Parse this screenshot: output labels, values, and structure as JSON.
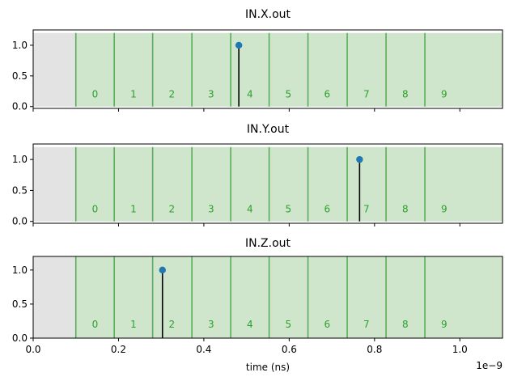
{
  "chart_data": [
    {
      "type": "scatter",
      "title": "IN.X.out",
      "xlim": [
        0,
        1.1e-09
      ],
      "ylim": [
        -0.03,
        1.25
      ],
      "yticks": [
        {
          "v": 0.0,
          "label": "0.0"
        },
        {
          "v": 0.5,
          "label": "0.5"
        },
        {
          "v": 1.0,
          "label": "1.0"
        }
      ],
      "points": [
        {
          "x": 4.82e-10,
          "y": 1.0
        }
      ],
      "show_xticklabels": false
    },
    {
      "type": "scatter",
      "title": "IN.Y.out",
      "xlim": [
        0,
        1.1e-09
      ],
      "ylim": [
        -0.03,
        1.25
      ],
      "yticks": [
        {
          "v": 0.0,
          "label": "0.0"
        },
        {
          "v": 0.5,
          "label": "0.5"
        },
        {
          "v": 1.0,
          "label": "1.0"
        }
      ],
      "points": [
        {
          "x": 7.65e-10,
          "y": 1.0
        }
      ],
      "show_xticklabels": false
    },
    {
      "type": "scatter",
      "title": "IN.Z.out",
      "xlim": [
        0,
        1.1e-09
      ],
      "ylim": [
        0,
        1.2
      ],
      "yticks": [
        {
          "v": 0.0,
          "label": "0.0"
        },
        {
          "v": 0.5,
          "label": "0.5"
        },
        {
          "v": 1.0,
          "label": "1.0"
        }
      ],
      "points": [
        {
          "x": 3.03e-10,
          "y": 1.0
        }
      ],
      "show_xticklabels": true
    }
  ],
  "shared": {
    "xlabel": "time (ns)",
    "x_offset_label": "1e−9",
    "xticks": [
      {
        "v": 0.0,
        "label": "0.0"
      },
      {
        "v": 2e-10,
        "label": "0.2"
      },
      {
        "v": 4e-10,
        "label": "0.4"
      },
      {
        "v": 6e-10,
        "label": "0.6"
      },
      {
        "v": 8e-10,
        "label": "0.8"
      },
      {
        "v": 1e-09,
        "label": "1.0"
      }
    ],
    "dead_region": [
      0,
      1e-10
    ],
    "bin_boundaries": [
      1e-10,
      1.9e-10,
      2.8e-10,
      3.72e-10,
      4.63e-10,
      5.53e-10,
      6.44e-10,
      7.36e-10,
      8.27e-10,
      9.18e-10
    ],
    "bin_labels": [
      "0",
      "1",
      "2",
      "3",
      "4",
      "5",
      "6",
      "7",
      "8",
      "9"
    ],
    "bin_label_y": 0.2,
    "bin_top": 1.2,
    "colors": {
      "dead": "#e3e3e3",
      "bin_fill": "#cfe6cd",
      "bin_line": "#5aac5a",
      "bin_text": "#2ca02c",
      "marker": "#1f77b4",
      "stem": "#000000"
    }
  }
}
